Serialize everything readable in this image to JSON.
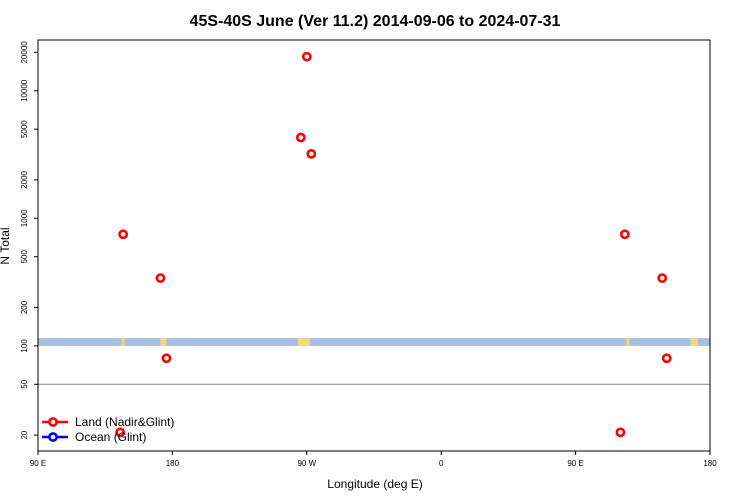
{
  "chart_data": {
    "type": "scatter",
    "title": "45S-40S June (Ver 11.2)   2014-09-06 to 2024-07-31",
    "xlabel": "Longitude (deg E)",
    "ylabel": "N Total",
    "y_scale": "log",
    "xlim": [
      90,
      540
    ],
    "ylim": [
      15,
      25000
    ],
    "x_ticks": [
      {
        "value": 90,
        "label": "90 E"
      },
      {
        "value": 180,
        "label": "180"
      },
      {
        "value": 270,
        "label": "90 W"
      },
      {
        "value": 360,
        "label": "0"
      },
      {
        "value": 450,
        "label": "90 E"
      },
      {
        "value": 540,
        "label": "180"
      }
    ],
    "y_ticks": [
      {
        "value": 20,
        "label": "20"
      },
      {
        "value": 50,
        "label": "50"
      },
      {
        "value": 100,
        "label": "100"
      },
      {
        "value": 200,
        "label": "200"
      },
      {
        "value": 500,
        "label": "500"
      },
      {
        "value": 1000,
        "label": "1000"
      },
      {
        "value": 2000,
        "label": "2000"
      },
      {
        "value": 5000,
        "label": "5000"
      },
      {
        "value": 10000,
        "label": "10000"
      },
      {
        "value": 20000,
        "label": "20000"
      }
    ],
    "reference_line": {
      "y": 50,
      "color": "#808080"
    },
    "map_strip": {
      "y_range": [
        100,
        115
      ],
      "ocean_color": "#a8bedf",
      "land_color": "#f6d77a",
      "land_segments": [
        [
          146,
          148
        ],
        [
          172,
          176
        ],
        [
          264,
          272
        ],
        [
          484,
          486
        ],
        [
          527,
          532
        ]
      ]
    },
    "series": [
      {
        "name": "Land (Nadir&Glint)",
        "color": "#ff0000",
        "points": [
          {
            "x": 147,
            "y": 750
          },
          {
            "x": 172,
            "y": 340
          },
          {
            "x": 176,
            "y": 80
          },
          {
            "x": 145,
            "y": 21
          },
          {
            "x": 266,
            "y": 4300
          },
          {
            "x": 270,
            "y": 18500
          },
          {
            "x": 273,
            "y": 3200
          },
          {
            "x": 483,
            "y": 750
          },
          {
            "x": 508,
            "y": 340
          },
          {
            "x": 511,
            "y": 80
          },
          {
            "x": 480,
            "y": 21
          }
        ]
      },
      {
        "name": "Ocean (Glint)",
        "color": "#0000ff",
        "points": []
      }
    ],
    "legend_position": "bottom-left"
  }
}
